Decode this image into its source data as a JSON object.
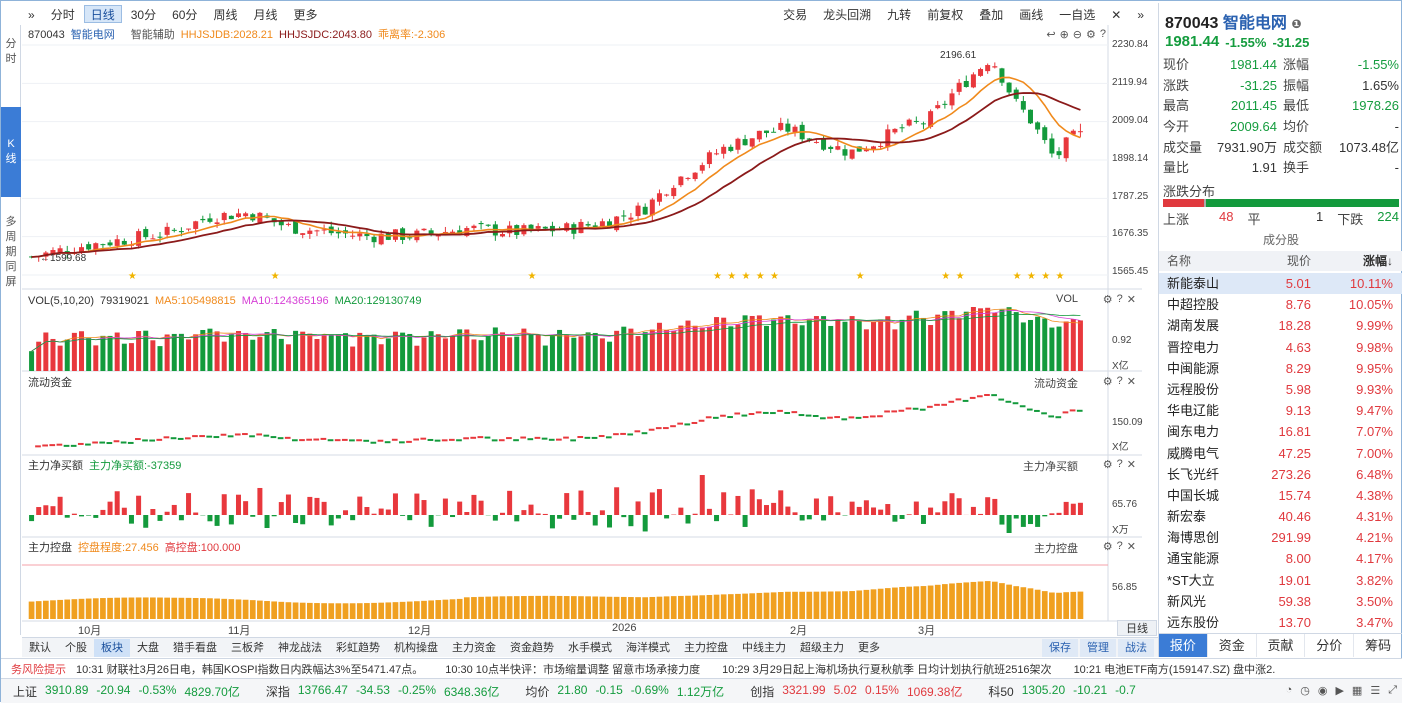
{
  "toolbar": {
    "left": [
      "分时",
      "日线",
      "30分",
      "60分",
      "周线",
      "月线",
      "更多"
    ],
    "right": [
      "交易",
      "龙头回溯",
      "九转",
      "前复权",
      "叠加",
      "画线",
      "一自选"
    ]
  },
  "leftrail": [
    "分",
    "时",
    "",
    "K",
    "线",
    "",
    "多",
    "周",
    "期",
    "同",
    "屏"
  ],
  "main_legend": {
    "code": "870043",
    "name": "智能电网",
    "aux": "智能辅助",
    "l1": "HHJSJDB:2028.21",
    "l2": "HHJSJDC:2043.80",
    "l3": "乖离率:-2.306"
  },
  "price_axis": [
    "2230.84",
    "2119.94",
    "2009.04",
    "1898.14",
    "1787.25",
    "1676.35",
    "1565.45"
  ],
  "annotations": {
    "high": "2196.61",
    "low": "1599.68"
  },
  "vol_legend": {
    "title": "VOL(5,10,20)",
    "v": "79319021",
    "ma5": "MA5:105498815",
    "ma10": "MA10:124365196",
    "ma20": "MA20:129130749",
    "right": "VOL",
    "axis": "0.92",
    "unit": "X亿"
  },
  "flow_legend": {
    "title": "流动资金",
    "right": "流动资金",
    "axis": "150.09",
    "unit": "X亿"
  },
  "main_net_legend": {
    "title": "主力净买额",
    "v": "主力净买额:-37359",
    "right": "主力净买额",
    "axis": "65.76",
    "unit": "X万"
  },
  "control_legend": {
    "title": "主力控盘",
    "degree": "控盘程度:27.456",
    "high": "高控盘:100.000",
    "right": "主力控盘",
    "axis": "56.85"
  },
  "x_labels": [
    "10月",
    "11月",
    "12月",
    "2026",
    "2月",
    "3月"
  ],
  "daytab": "日线",
  "bottom_tabs": [
    "默认",
    "个股",
    "板块",
    "大盘",
    "猎手看盘",
    "三板斧",
    "神龙战法",
    "彩虹趋势",
    "机构操盘",
    "主力资金",
    "资金趋势",
    "水手模式",
    "海洋模式",
    "主力控盘",
    "中线主力",
    "超级主力",
    "更多"
  ],
  "bottom_right": [
    "保存",
    "管理",
    "战法"
  ],
  "ticker": {
    "warn": "务风险提示",
    "items": [
      "10:31 财联社3月26日电，韩国KOSPI指数日内跌幅达3%至5471.47点。",
      "10:30 10点半快评：市场缩量调整 留意市场承接力度",
      "10:29 3月29日起上海机场执行夏秋航季 日均计划执行航班2516架次",
      "10:21 电池ETF南方(159147.SZ) 盘中涨2."
    ]
  },
  "indices": [
    {
      "name": "上证",
      "v": "3910.89",
      "c": "-20.94",
      "p": "-0.53%",
      "amt": "4829.70亿",
      "dir": "green"
    },
    {
      "name": "深指",
      "v": "13766.47",
      "c": "-34.53",
      "p": "-0.25%",
      "amt": "6348.36亿",
      "dir": "green"
    },
    {
      "name": "均价",
      "v": "21.80",
      "c": "-0.15",
      "p": "-0.69%",
      "amt": "1.12万亿",
      "dir": "green"
    },
    {
      "name": "创指",
      "v": "3321.99",
      "c": "5.02",
      "p": "0.15%",
      "amt": "1069.38亿",
      "dir": "red"
    },
    {
      "name": "科50",
      "v": "1305.20",
      "c": "-10.21",
      "p": "-0.7",
      "amt": "",
      "dir": "green"
    }
  ],
  "stock": {
    "code": "870043",
    "name": "智能电网",
    "price": "1981.44",
    "pct": "-1.55%",
    "chg": "-31.25",
    "quote": [
      [
        "现价",
        "1981.44",
        "g",
        "涨幅",
        "-1.55%",
        "g"
      ],
      [
        "涨跌",
        "-31.25",
        "g",
        "振幅",
        "1.65%",
        "k"
      ],
      [
        "最高",
        "2011.45",
        "g",
        "最低",
        "1978.26",
        "g"
      ],
      [
        "今开",
        "2009.64",
        "g",
        "均价",
        "-",
        "k"
      ],
      [
        "成交量",
        "7931.90万",
        "k",
        "成交额",
        "1073.48亿",
        "k"
      ],
      [
        "量比",
        "1.91",
        "k",
        "换手",
        "-",
        "k"
      ]
    ],
    "dist_title": "涨跌分布",
    "dist": {
      "up_label": "上涨",
      "up": "48",
      "flat_label": "平",
      "flat": "1",
      "down_label": "下跌",
      "down": "224"
    },
    "cfg_title": "成分股",
    "cfg_head": [
      "名称",
      "现价",
      "涨幅↓"
    ],
    "cfg": [
      [
        "新能泰山",
        "5.01",
        "10.11%"
      ],
      [
        "中超控股",
        "8.76",
        "10.05%"
      ],
      [
        "湖南发展",
        "18.28",
        "9.99%"
      ],
      [
        "晋控电力",
        "4.63",
        "9.98%"
      ],
      [
        "中闽能源",
        "8.29",
        "9.95%"
      ],
      [
        "远程股份",
        "5.98",
        "9.93%"
      ],
      [
        "华电辽能",
        "9.13",
        "9.47%"
      ],
      [
        "闽东电力",
        "16.81",
        "7.07%"
      ],
      [
        "威腾电气",
        "47.25",
        "7.00%"
      ],
      [
        "长飞光纤",
        "273.26",
        "6.48%"
      ],
      [
        "中国长城",
        "15.74",
        "4.38%"
      ],
      [
        "新宏泰",
        "40.46",
        "4.31%"
      ],
      [
        "海博思创",
        "291.99",
        "4.21%"
      ],
      [
        "通宝能源",
        "8.00",
        "4.17%"
      ],
      [
        "*ST大立",
        "19.01",
        "3.82%"
      ],
      [
        "新风光",
        "59.38",
        "3.50%"
      ],
      [
        "远东股份",
        "13.70",
        "3.47%"
      ]
    ],
    "rtabs": [
      "报价",
      "资金",
      "贡献",
      "分价",
      "筹码"
    ]
  },
  "chart_data": {
    "type": "candlestick",
    "ylim": [
      1565.45,
      2230.84
    ],
    "high": 2196.61,
    "low": 1599.68,
    "last_close": 1981.44,
    "first_close": 1618.0,
    "shape": "uptrend Oct→Feb, peak in March near 2196.61, pullback to 1981.44",
    "x_labels": [
      "10月",
      "11月",
      "12月",
      "2026",
      "2月",
      "3月"
    ],
    "colors": {
      "up": "#e8383d",
      "down": "#139a3c",
      "ma_fast": "#f08a1c",
      "ma_slow": "#8b1a1a"
    }
  }
}
